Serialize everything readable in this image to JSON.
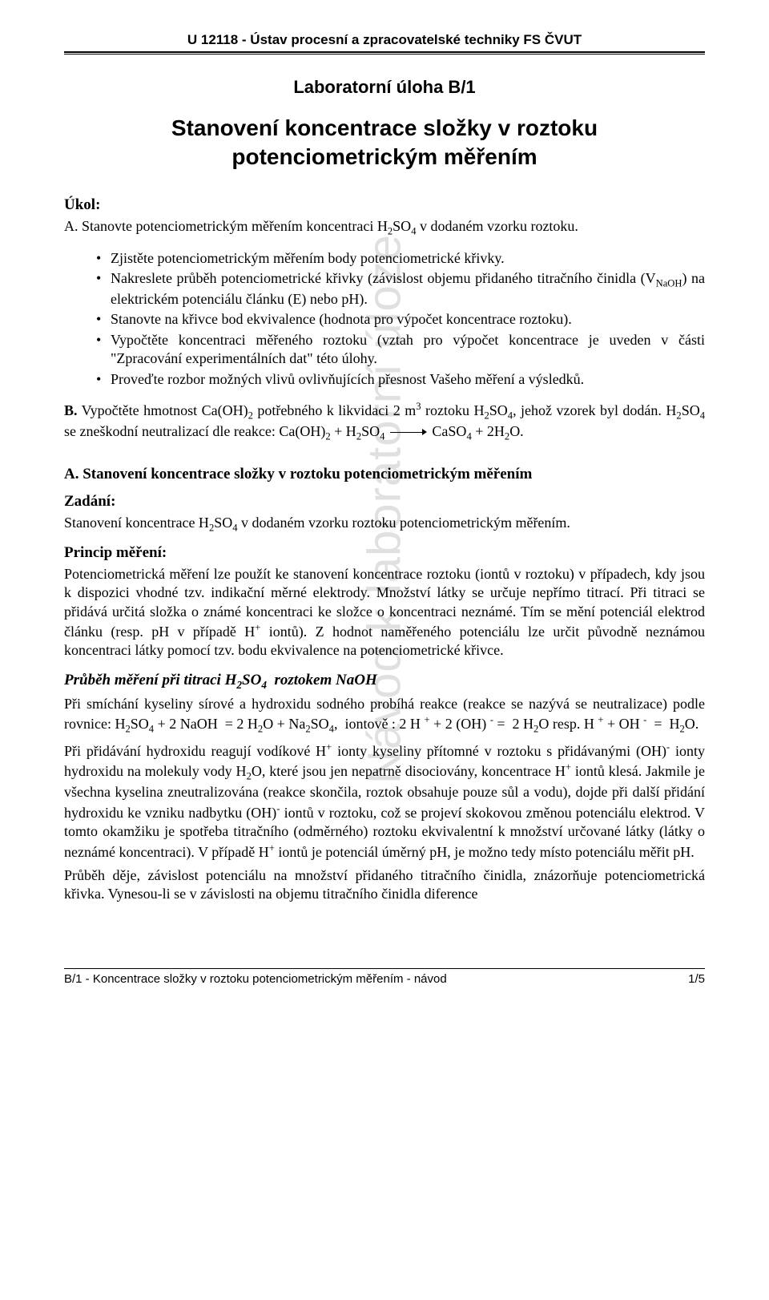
{
  "header": {
    "institute": "U 12118 - Ústav procesní a zpracovatelské techniky FS ČVUT"
  },
  "watermark": "Návod k laboratorní úloze",
  "titles": {
    "lab": "Laboratorní úloha B/1",
    "main_l1": "Stanovení koncentrace složky v roztoku",
    "main_l2": "potenciometrickým měřením"
  },
  "task": {
    "heading": "Úkol:",
    "intro": "A. Stanovte potenciometrickým měřením koncentraci H₂SO₄ v dodaném vzorku roztoku.",
    "bullets": [
      "Zjistěte potenciometrickým měřením body potenciometrické křivky.",
      "Nakreslete průběh potenciometrické křivky (závislost objemu přidaného titračního činidla (V_NaOH) na elektrickém potenciálu článku (E) nebo pH).",
      "Stanovte na křivce bod ekvivalence (hodnota pro výpočet koncentrace roztoku).",
      "Vypočtěte koncentraci měřeného roztoku (vztah pro výpočet koncentrace je uveden v části \"Zpracování experimentálních dat\" této úlohy.",
      "Proveďte rozbor možných vlivů ovlivňujících přesnost Vašeho měření a výsledků."
    ],
    "taskB": "B. Vypočtěte hmotnost Ca(OH)₂ potřebného k likvidaci 2 m³ roztoku H₂SO₄, jehož vzorek byl dodán. H₂SO₄ se zneškodní neutralizací dle reakce: Ca(OH)₂ + H₂SO₄ ——→ CaSO₄ + 2H₂O."
  },
  "sectionA": {
    "heading": "A. Stanovení koncentrace složky v roztoku potenciometrickým měřením",
    "zadani_head": "Zadání:",
    "zadani_text": "Stanovení koncentrace H₂SO₄ v dodaném vzorku roztoku potenciometrickým měřením.",
    "princip_head": "Princip měření:",
    "princip_text": "Potenciometrická měření lze použít ke stanovení koncentrace roztoku (iontů v roztoku) v případech, kdy jsou k dispozici vhodné tzv. indikační měrné elektrody. Množství látky se určuje nepřímo titrací. Při titraci se přidává určitá složka o známé koncentraci ke složce o koncentraci neznámé. Tím se mění potenciál elektrod článku (resp. pH v případě H⁺ iontů). Z hodnot naměřeného potenciálu lze určit původně neznámou koncentraci látky pomocí tzv. bodu ekvivalence na potenciometrické křivce.",
    "prubeh_head": "Průběh měření při titraci H₂SO₄ roztokem NaOH",
    "prubeh_p1": "Při smíchání kyseliny sírové a hydroxidu sodného probíhá reakce (reakce se nazývá se neutralizace) podle rovnice: H₂SO₄ + 2 NaOH = 2 H₂O + Na₂SO₄, iontově : 2 H⁺ + 2 (OH)⁻ = 2 H₂O resp. H⁺ + OH⁻ = H₂O.",
    "prubeh_p2": "Při přidávání hydroxidu reagují vodíkové H⁺ ionty kyseliny přítomné v roztoku s přidávanými (OH)⁻ ionty hydroxidu na molekuly vody H₂O, které jsou jen nepatrně disociovány, koncentrace H⁺ iontů klesá. Jakmile je všechna kyselina zneutralizována (reakce skončila, roztok obsahuje pouze sůl a vodu), dojde při další přidání hydroxidu ke vzniku nadbytku (OH)⁻ iontů v roztoku, což se projeví skokovou změnou potenciálu elektrod. V tomto okamžiku je spotřeba titračního (odměrného) roztoku ekvivalentní k množství určované látky (látky o neznámé koncentraci). V případě H⁺ iontů je potenciál úměrný pH, je možno tedy místo potenciálu měřit pH.",
    "prubeh_p3": "Průběh děje, závislost potenciálu na množství přidaného titračního činidla, znázorňuje potenciometrická křivka. Vynesou-li se v závislosti na objemu titračního činidla diference"
  },
  "footer": {
    "text": "B/1 - Koncentrace složky v roztoku potenciometrickým měřením - návod",
    "page": "1/5"
  }
}
